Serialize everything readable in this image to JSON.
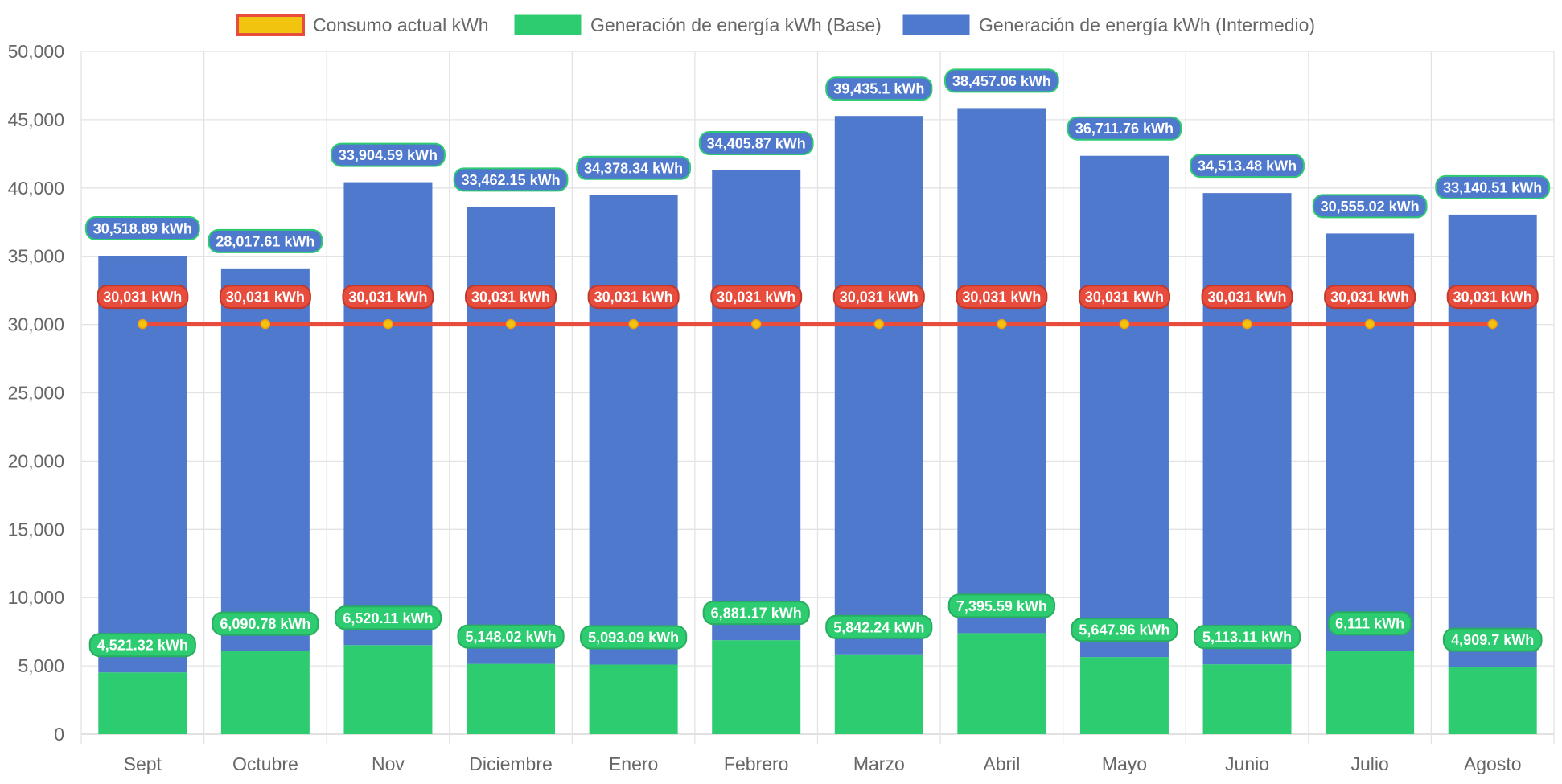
{
  "chart_data": {
    "type": "bar",
    "stacked": true,
    "categories": [
      "Sept",
      "Octubre",
      "Nov",
      "Diciembre",
      "Enero",
      "Febrero",
      "Marzo",
      "Abril",
      "Mayo",
      "Junio",
      "Julio",
      "Agosto"
    ],
    "series": [
      {
        "name": "Consumo actual kWh",
        "kind": "line",
        "color": "#E74C3C",
        "point_color": "#F1C40F",
        "values": [
          30031,
          30031,
          30031,
          30031,
          30031,
          30031,
          30031,
          30031,
          30031,
          30031,
          30031,
          30031
        ],
        "labels": [
          "30,031 kWh",
          "30,031 kWh",
          "30,031 kWh",
          "30,031 kWh",
          "30,031 kWh",
          "30,031 kWh",
          "30,031 kWh",
          "30,031 kWh",
          "30,031 kWh",
          "30,031 kWh",
          "30,031 kWh",
          "30,031 kWh"
        ]
      },
      {
        "name": "Generación de energía kWh (Base)",
        "kind": "bar",
        "color": "#2ECC71",
        "values": [
          4521.32,
          6090.78,
          6520.11,
          5148.02,
          5093.09,
          6881.17,
          5842.24,
          7395.59,
          5647.96,
          5113.11,
          6111,
          4909.7
        ],
        "labels": [
          "4,521.32 kWh",
          "6,090.78 kWh",
          "6,520.11 kWh",
          "5,148.02 kWh",
          "5,093.09 kWh",
          "6,881.17 kWh",
          "5,842.24 kWh",
          "7,395.59 kWh",
          "5,647.96 kWh",
          "5,113.11 kWh",
          "6,111 kWh",
          "4,909.7 kWh"
        ]
      },
      {
        "name": "Generación de energía kWh (Intermedio)",
        "kind": "bar",
        "color": "#4F79CC",
        "values": [
          30518.89,
          28017.61,
          33904.59,
          33462.15,
          34378.34,
          34405.87,
          39435.1,
          38457.06,
          36711.76,
          34513.48,
          30555.02,
          33140.51
        ],
        "labels": [
          "30,518.89 kWh",
          "28,017.61 kWh",
          "33,904.59 kWh",
          "33,462.15 kWh",
          "34,378.34 kWh",
          "34,405.87 kWh",
          "39,435.1 kWh",
          "38,457.06 kWh",
          "36,711.76 kWh",
          "34,513.48 kWh",
          "30,555.02 kWh",
          "33,140.51 kWh"
        ]
      }
    ],
    "ylim": [
      0,
      50000
    ],
    "yticks": [
      0,
      5000,
      10000,
      15000,
      20000,
      25000,
      30000,
      35000,
      40000,
      45000,
      50000
    ],
    "ytick_labels": [
      "0",
      "5,000",
      "10,000",
      "15,000",
      "20,000",
      "25,000",
      "30,000",
      "35,000",
      "40,000",
      "45,000",
      "50,000"
    ],
    "grid": true,
    "legend_position": "top-center",
    "title": "",
    "xlabel": "",
    "ylabel": ""
  }
}
